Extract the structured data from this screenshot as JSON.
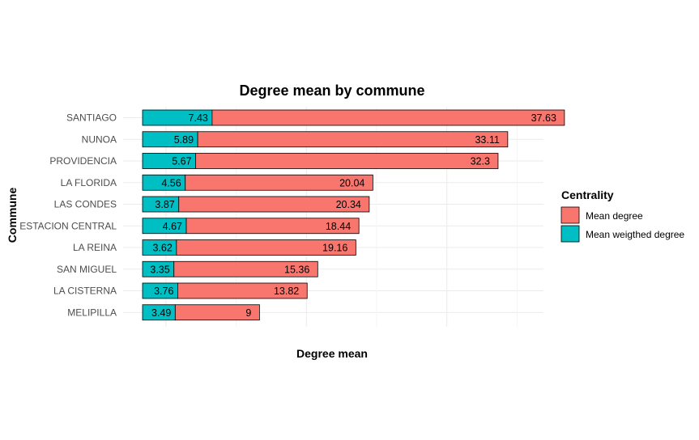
{
  "chart_data": {
    "type": "bar",
    "title": "Degree mean by commune",
    "xlabel": "Degree mean",
    "ylabel": "Commune",
    "categories": [
      "SANTIAGO",
      "NUNOA",
      "PROVIDENCIA",
      "LA FLORIDA",
      "LAS CONDES",
      "ESTACION CENTRAL",
      "LA REINA",
      "SAN MIGUEL",
      "LA CISTERNA",
      "MELIPILLA"
    ],
    "series": [
      {
        "name": "Mean weigthed degree",
        "color": "#00BFC4",
        "values": [
          7.43,
          5.89,
          5.67,
          4.56,
          3.87,
          4.67,
          3.62,
          3.35,
          3.76,
          3.49
        ]
      },
      {
        "name": "Mean degree",
        "color": "#F8766D",
        "values": [
          37.63,
          33.11,
          32.3,
          20.04,
          20.34,
          18.44,
          19.16,
          15.36,
          13.82,
          9
        ]
      }
    ],
    "data_labels": {
      "Mean weigthed degree": [
        "7.43",
        "5.89",
        "5.67",
        "4.56",
        "3.87",
        "4.67",
        "3.62",
        "3.35",
        "3.76",
        "3.49"
      ],
      "Mean degree": [
        "37.63",
        "33.11",
        "32.3",
        "20.04",
        "20.34",
        "18.44",
        "19.16",
        "15.36",
        "13.82",
        "9"
      ]
    },
    "orientation": "horizontal",
    "stacked": true,
    "xlim": [
      -1.9,
      52
    ],
    "legend": {
      "title": "Centrality",
      "placement": "right"
    },
    "grid": true,
    "x_tick_labels_shown": false
  }
}
